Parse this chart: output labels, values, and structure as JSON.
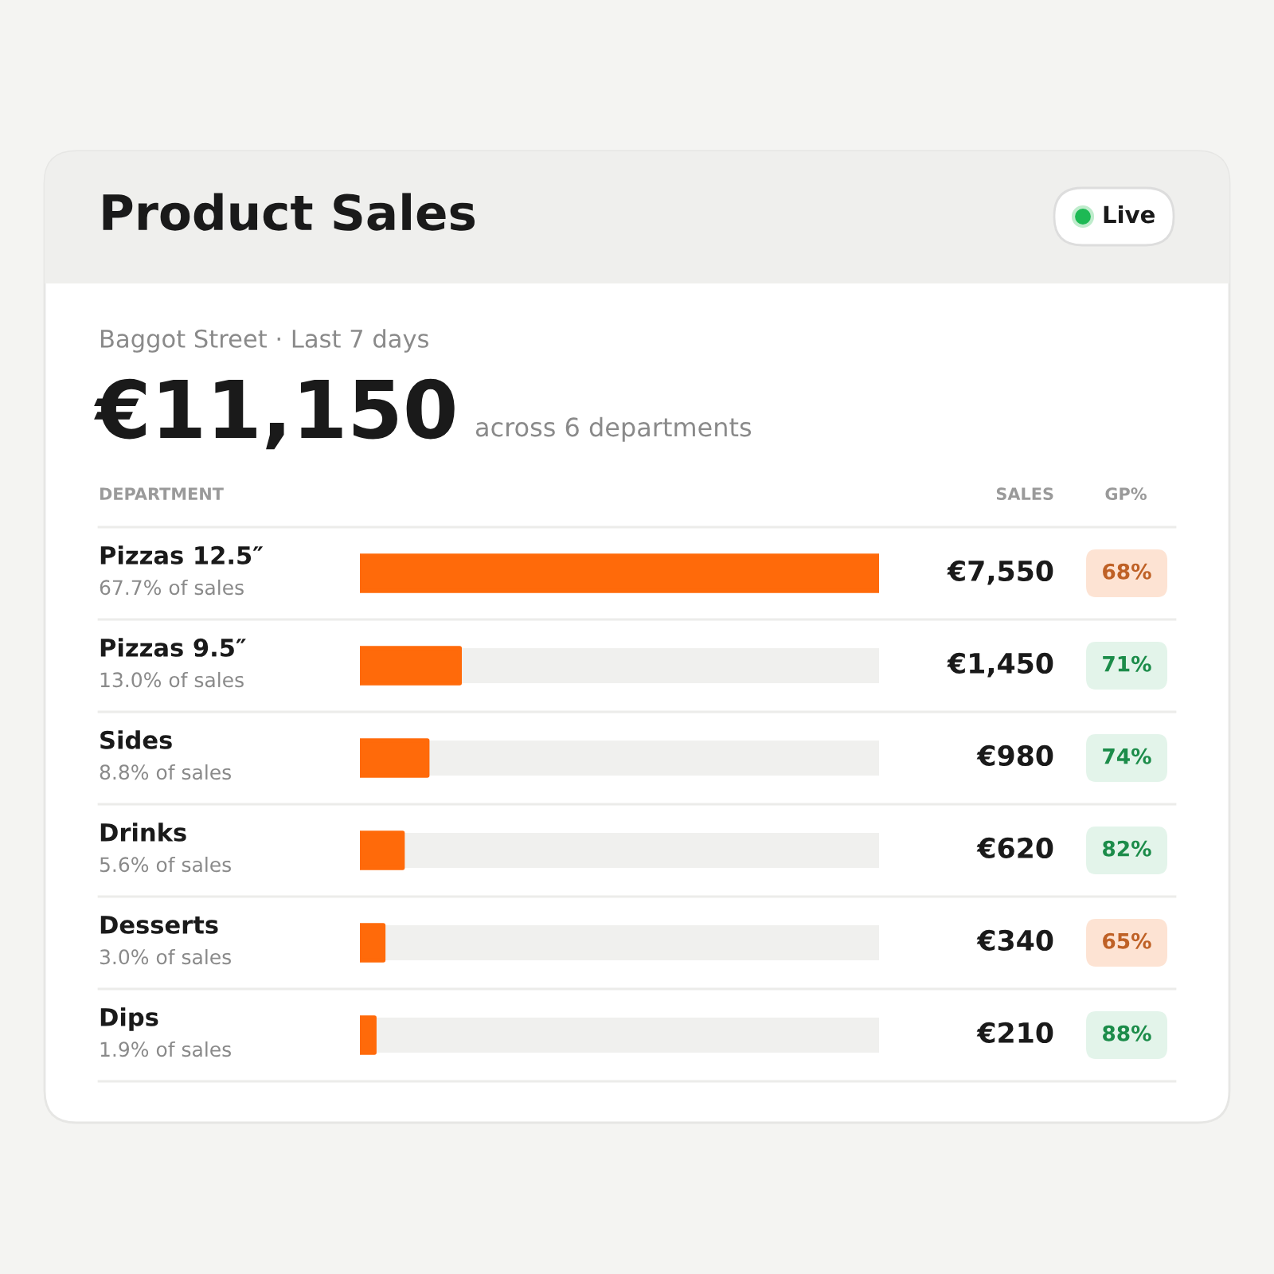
{
  "chart_data": [
    {
      "type": "bar",
      "orientation": "horizontal",
      "title": "Product Sales",
      "subtitle": "Baggot Street · Last 7 days",
      "categories": [
        "Pizzas 12.5″",
        "Pizzas 9.5″",
        "Sides",
        "Drinks",
        "Desserts",
        "Dips"
      ],
      "values": [
        7550,
        1450,
        980,
        620,
        340,
        210
      ],
      "value_labels": [
        "€7,550",
        "€1,450",
        "€980",
        "€620",
        "€340",
        "€210"
      ],
      "color": "#ff6a0a",
      "xlim": [
        0,
        7550
      ],
      "tick_labels": false,
      "annotations": [
        "Live",
        "€11,150",
        "across 6 departments",
        "DEPARTMENT",
        "SALES",
        "67.7% of sales",
        "13.0% of sales",
        "8.8% of sales",
        "5.6% of sales",
        "3.0% of sales",
        "1.9% of sales"
      ]
    },
    {
      "type": "other",
      "title": "GP%",
      "categories": [
        null,
        null,
        null,
        null,
        null,
        null
      ],
      "values": [
        68,
        71,
        74,
        82,
        65,
        88
      ],
      "value_labels": [
        "68%",
        "71%",
        "74%",
        "82%",
        "65%",
        "88%"
      ],
      "colors": [
        "#fde3d3",
        "#e3f4ea",
        "#e3f4ea",
        "#e3f4ea",
        "#fde3d3",
        "#e3f4ea"
      ]
    }
  ]
}
